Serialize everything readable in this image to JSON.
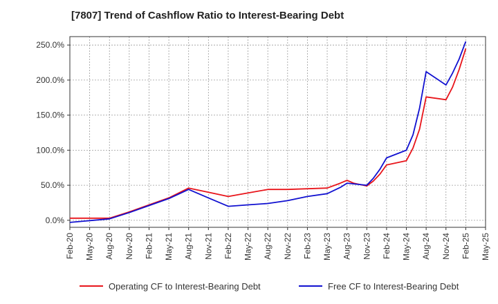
{
  "chart_data": {
    "type": "line",
    "title": "[7807]  Trend of Cashflow Ratio to Interest-Bearing Debt",
    "xlabel": "",
    "ylabel": "",
    "x_ticks": [
      "Feb-20",
      "May-20",
      "Aug-20",
      "Nov-20",
      "Feb-21",
      "May-21",
      "Aug-21",
      "Nov-21",
      "Feb-22",
      "May-22",
      "Aug-22",
      "Nov-22",
      "Feb-23",
      "May-23",
      "Aug-23",
      "Nov-23",
      "Feb-24",
      "May-24",
      "Aug-24",
      "Nov-24",
      "Feb-25",
      "May-25"
    ],
    "y_ticks": [
      "0.0%",
      "50.0%",
      "100.0%",
      "150.0%",
      "200.0%",
      "250.0%"
    ],
    "ylim": [
      -10,
      262
    ],
    "grid": true,
    "legend_position": "bottom",
    "series": [
      {
        "name": "Operating CF to Interest-Bearing Debt",
        "color": "#e8141a",
        "points": [
          [
            "Feb-20",
            3
          ],
          [
            "Aug-20",
            3
          ],
          [
            "Nov-20",
            12
          ],
          [
            "Feb-21",
            22
          ],
          [
            "May-21",
            32
          ],
          [
            "Aug-21",
            46
          ],
          [
            "Nov-21",
            40
          ],
          [
            "Feb-22",
            34
          ],
          [
            "May-22",
            39
          ],
          [
            "Aug-22",
            44
          ],
          [
            "Nov-22",
            44
          ],
          [
            "Feb-23",
            45
          ],
          [
            "May-23",
            46
          ],
          [
            "Jul-23",
            53
          ],
          [
            "Aug-23",
            57
          ],
          [
            "Sep-23",
            53
          ],
          [
            "Nov-23",
            49
          ],
          [
            "Dec-23",
            56
          ],
          [
            "Jan-24",
            66
          ],
          [
            "Feb-24",
            79
          ],
          [
            "May-24",
            85
          ],
          [
            "Jun-24",
            103
          ],
          [
            "Jul-24",
            130
          ],
          [
            "Aug-24",
            176
          ],
          [
            "Nov-24",
            172
          ],
          [
            "Dec-24",
            190
          ],
          [
            "Jan-25",
            215
          ],
          [
            "Feb-25",
            245
          ]
        ]
      },
      {
        "name": "Free CF to Interest-Bearing Debt",
        "color": "#1010d0",
        "points": [
          [
            "Feb-20",
            -3
          ],
          [
            "Aug-20",
            2
          ],
          [
            "Nov-20",
            11
          ],
          [
            "Feb-21",
            21
          ],
          [
            "May-21",
            31
          ],
          [
            "Aug-21",
            44
          ],
          [
            "Nov-21",
            32
          ],
          [
            "Feb-22",
            20
          ],
          [
            "May-22",
            22
          ],
          [
            "Aug-22",
            24
          ],
          [
            "Nov-22",
            28
          ],
          [
            "Feb-23",
            34
          ],
          [
            "May-23",
            38
          ],
          [
            "Jul-23",
            47
          ],
          [
            "Aug-23",
            53
          ],
          [
            "Sep-23",
            52
          ],
          [
            "Nov-23",
            50
          ],
          [
            "Dec-23",
            60
          ],
          [
            "Jan-24",
            73
          ],
          [
            "Feb-24",
            89
          ],
          [
            "May-24",
            100
          ],
          [
            "Jun-24",
            122
          ],
          [
            "Jul-24",
            160
          ],
          [
            "Aug-24",
            212
          ],
          [
            "Nov-24",
            193
          ],
          [
            "Dec-24",
            210
          ],
          [
            "Jan-25",
            230
          ],
          [
            "Feb-25",
            255
          ]
        ]
      }
    ]
  }
}
